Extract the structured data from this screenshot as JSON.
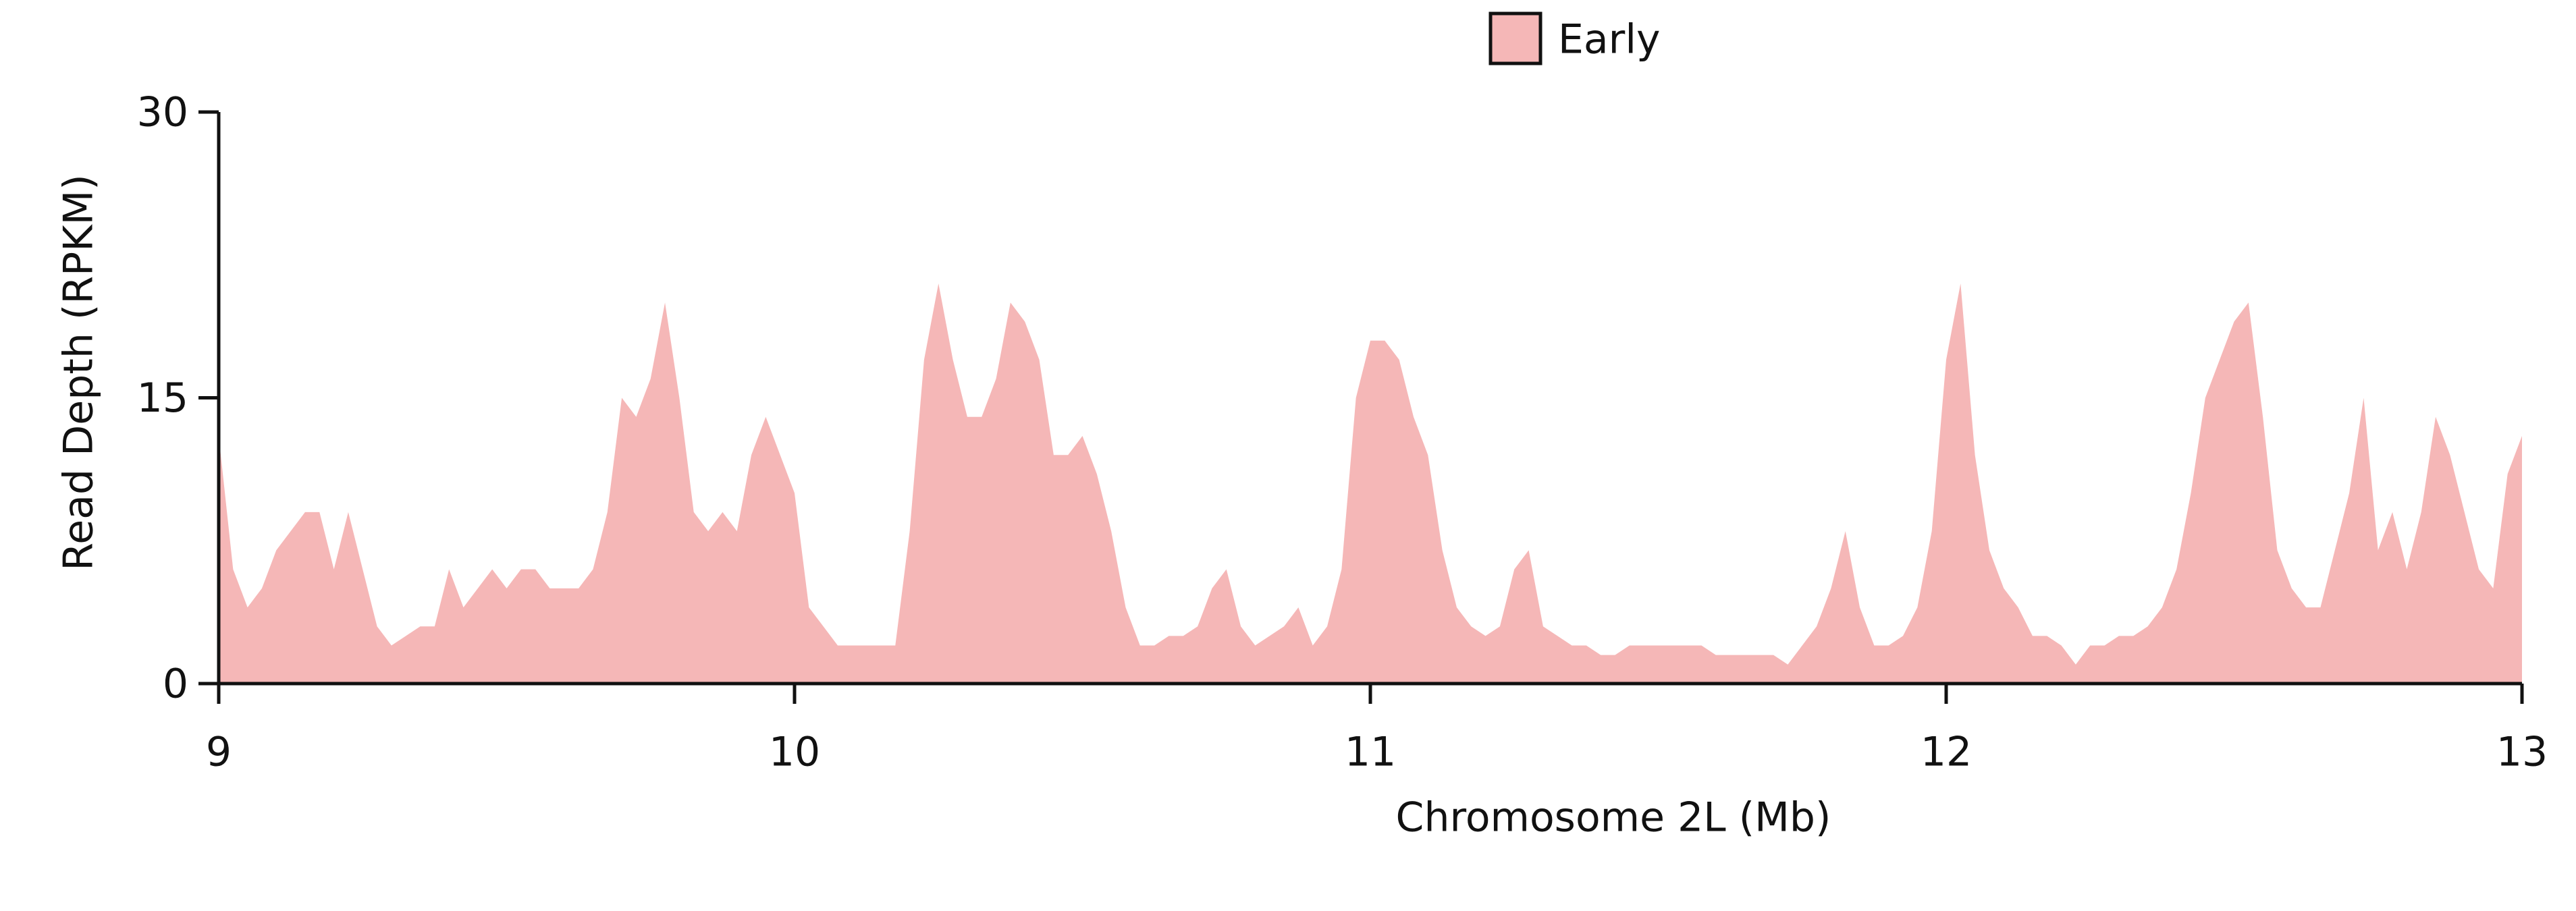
{
  "chart_data": {
    "type": "area",
    "x_label": "Chromosome 2L (Mb)",
    "y_label": "Read Depth (RPKM)",
    "xlim": [
      9,
      13
    ],
    "ylim": [
      0,
      30
    ],
    "xticks": [
      9,
      10,
      11,
      12,
      13
    ],
    "yticks": [
      0,
      15,
      30
    ],
    "legend": "top",
    "x": [
      9.0,
      9.025,
      9.05,
      9.075,
      9.1,
      9.125,
      9.15,
      9.175,
      9.2,
      9.225,
      9.25,
      9.275,
      9.3,
      9.325,
      9.35,
      9.375,
      9.4,
      9.425,
      9.45,
      9.475,
      9.5,
      9.525,
      9.55,
      9.575,
      9.6,
      9.625,
      9.65,
      9.675,
      9.7,
      9.725,
      9.75,
      9.775,
      9.8,
      9.825,
      9.85,
      9.875,
      9.9,
      9.925,
      9.95,
      9.975,
      10.0,
      10.025,
      10.05,
      10.075,
      10.1,
      10.125,
      10.15,
      10.175,
      10.2,
      10.225,
      10.25,
      10.275,
      10.3,
      10.325,
      10.35,
      10.375,
      10.4,
      10.425,
      10.45,
      10.475,
      10.5,
      10.525,
      10.55,
      10.575,
      10.6,
      10.625,
      10.65,
      10.675,
      10.7,
      10.725,
      10.75,
      10.775,
      10.8,
      10.825,
      10.85,
      10.875,
      10.9,
      10.925,
      10.95,
      10.975,
      11.0,
      11.025,
      11.05,
      11.075,
      11.1,
      11.125,
      11.15,
      11.175,
      11.2,
      11.225,
      11.25,
      11.275,
      11.3,
      11.325,
      11.35,
      11.375,
      11.4,
      11.425,
      11.45,
      11.475,
      11.5,
      11.525,
      11.55,
      11.575,
      11.6,
      11.625,
      11.65,
      11.675,
      11.7,
      11.725,
      11.75,
      11.775,
      11.8,
      11.825,
      11.85,
      11.875,
      11.9,
      11.925,
      11.95,
      11.975,
      12.0,
      12.025,
      12.05,
      12.075,
      12.1,
      12.125,
      12.15,
      12.175,
      12.2,
      12.225,
      12.25,
      12.275,
      12.3,
      12.325,
      12.35,
      12.375,
      12.4,
      12.425,
      12.45,
      12.475,
      12.5,
      12.525,
      12.55,
      12.575,
      12.6,
      12.625,
      12.65,
      12.675,
      12.7,
      12.725,
      12.75,
      12.775,
      12.8,
      12.825,
      12.85,
      12.875,
      12.9,
      12.925,
      12.95,
      12.975,
      13.0
    ],
    "series": [
      {
        "name": "Early",
        "color": "#f5b7b7",
        "values": [
          13,
          6,
          4,
          5,
          7,
          8,
          9,
          9,
          6,
          9,
          6,
          3,
          2,
          2.5,
          3,
          3,
          6,
          4,
          5,
          6,
          5,
          6,
          6,
          5,
          5,
          5,
          6,
          9,
          15,
          14,
          16,
          20,
          15,
          9,
          8,
          9,
          8,
          12,
          14,
          12,
          10,
          4,
          3,
          2,
          2,
          2,
          2,
          2,
          8,
          17,
          21,
          17,
          14,
          14,
          16,
          20,
          19,
          17,
          12,
          12,
          13,
          11,
          8,
          4,
          2,
          2,
          2.5,
          2.5,
          3,
          5,
          6,
          3,
          2,
          2.5,
          3,
          4,
          2,
          3,
          6,
          15,
          18,
          18,
          17,
          14,
          12,
          7,
          4,
          3,
          2.5,
          3,
          6,
          7,
          3,
          2.5,
          2,
          2,
          1.5,
          1.5,
          2,
          2,
          2,
          2,
          2,
          2,
          1.5,
          1.5,
          1.5,
          1.5,
          1.5,
          1,
          2,
          3,
          5,
          8,
          4,
          2,
          2,
          2.5,
          4,
          8,
          17,
          21,
          12,
          7,
          5,
          4,
          2.5,
          2.5,
          2,
          1,
          2,
          2,
          2.5,
          2.5,
          3,
          4,
          6,
          10,
          15,
          17,
          19,
          20,
          14,
          7,
          5,
          4,
          4,
          7,
          10,
          15,
          7,
          9,
          6,
          9,
          14,
          12,
          9,
          6,
          5,
          11,
          13
        ]
      }
    ]
  }
}
